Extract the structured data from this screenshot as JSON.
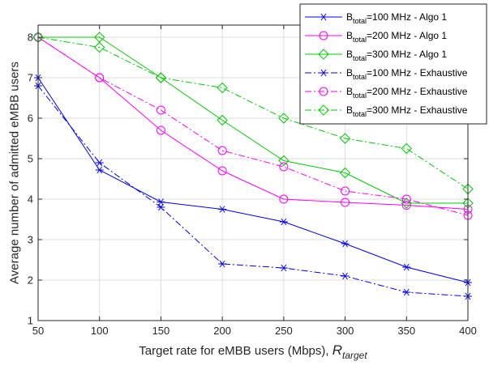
{
  "chart_data": {
    "type": "line",
    "xlabel": "Target rate for eMBB users (Mbps), ",
    "xlabel_symbol": "R",
    "xlabel_symbol_sub": "target",
    "ylabel": "Average number of admitted eMBB users",
    "x": [
      50,
      100,
      150,
      200,
      250,
      300,
      350,
      400
    ],
    "xlim": [
      50,
      400
    ],
    "ylim": [
      1,
      8.3
    ],
    "xticks": [
      "50",
      "100",
      "150",
      "200",
      "250",
      "300",
      "350",
      "400"
    ],
    "yticks": [
      "1",
      "2",
      "3",
      "4",
      "5",
      "6",
      "7",
      "8"
    ],
    "grid": true,
    "legend_position": "top-right",
    "series": [
      {
        "name_prefix": "B",
        "name_sub": "total",
        "name_suffix": "=100 MHz - Algo 1",
        "color": "#0000ff",
        "dash": "solid",
        "marker": "asterisk",
        "values": [
          7.0,
          4.72,
          3.93,
          3.75,
          3.44,
          2.9,
          2.32,
          1.94
        ]
      },
      {
        "name_prefix": "B",
        "name_sub": "total",
        "name_suffix": "=200 MHz - Algo 1",
        "color": "#ff00ff",
        "dash": "solid",
        "marker": "circle",
        "values": [
          8.0,
          7.0,
          5.7,
          4.7,
          4.0,
          3.92,
          3.85,
          3.75
        ]
      },
      {
        "name_prefix": "B",
        "name_sub": "total",
        "name_suffix": "=300 MHz - Algo 1",
        "color": "#00cc00",
        "dash": "solid",
        "marker": "diamond",
        "values": [
          8.0,
          8.0,
          7.0,
          5.95,
          4.95,
          4.65,
          3.9,
          3.9
        ]
      },
      {
        "name_prefix": "B",
        "name_sub": "total",
        "name_suffix": "=100 MHz - Exhaustive",
        "color": "#0000ff",
        "dash": "dashdot",
        "marker": "asterisk",
        "values": [
          6.8,
          4.9,
          3.8,
          2.4,
          2.3,
          2.1,
          1.7,
          1.6
        ]
      },
      {
        "name_prefix": "B",
        "name_sub": "total",
        "name_suffix": "=200 MHz - Exhaustive",
        "color": "#ff00ff",
        "dash": "dashdot",
        "marker": "circle",
        "values": [
          8.0,
          7.0,
          6.2,
          5.2,
          4.8,
          4.2,
          4.0,
          3.6
        ]
      },
      {
        "name_prefix": "B",
        "name_sub": "total",
        "name_suffix": "=300 MHz - Exhaustive",
        "color": "#00cc00",
        "dash": "dashdot",
        "marker": "diamond",
        "values": [
          8.0,
          7.75,
          7.0,
          6.75,
          6.0,
          5.5,
          5.25,
          4.25
        ]
      }
    ]
  }
}
